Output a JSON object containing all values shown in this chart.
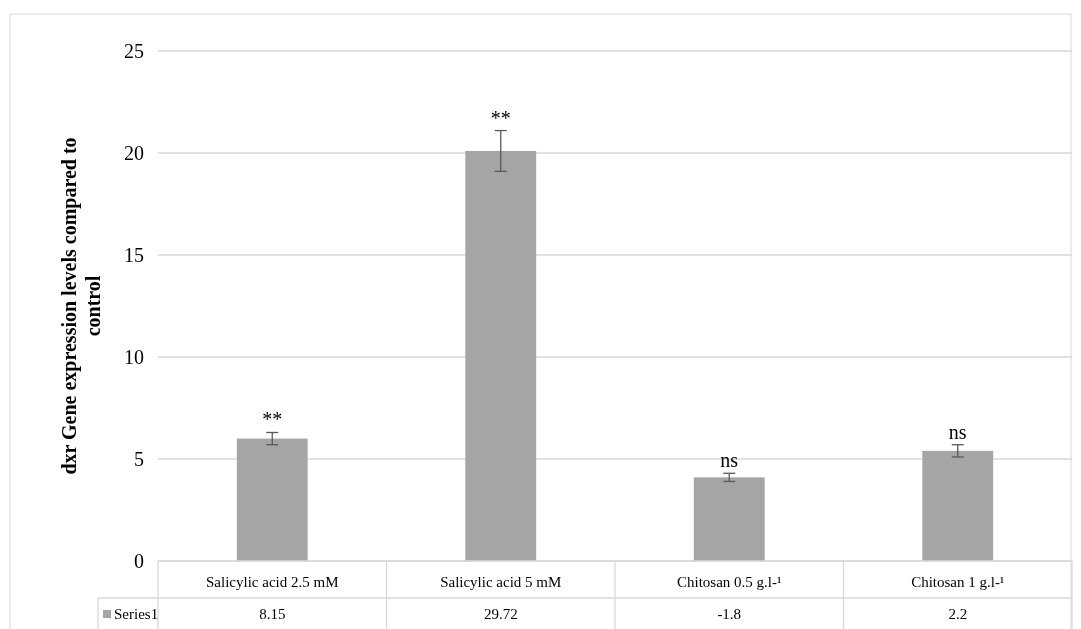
{
  "chart_data": {
    "type": "bar",
    "ylabel": "dxr Gene expression levels compared to control",
    "categories": [
      "Salicylic acid 2.5 mM",
      "Salicylic acid 5 mM",
      "Chitosan 0.5 g.l-¹",
      "Chitosan 1  g.l-¹"
    ],
    "series": [
      {
        "name": "Series1",
        "color": "#a5a5a5",
        "values": [
          6.0,
          20.1,
          4.1,
          5.4
        ],
        "errors": [
          0.3,
          1.0,
          0.2,
          0.3
        ]
      }
    ],
    "ylim": [
      0,
      25
    ],
    "yticks": [
      0,
      5,
      10,
      15,
      20,
      25
    ],
    "grid": "y",
    "annotations": [
      {
        "text": "**",
        "x": "Salicylic acid 2.5 mM",
        "y": 6.3
      },
      {
        "text": "**",
        "x": "Salicylic acid 5 mM",
        "y": 21.1
      },
      {
        "text": "ns",
        "x": "Chitosan 0.5 g.l-¹",
        "y": 4.3
      },
      {
        "text": "ns",
        "x": "Chitosan 1  g.l-¹",
        "y": 5.7
      },
      "8.15",
      "29.72",
      "-1.8",
      "2.2"
    ]
  }
}
